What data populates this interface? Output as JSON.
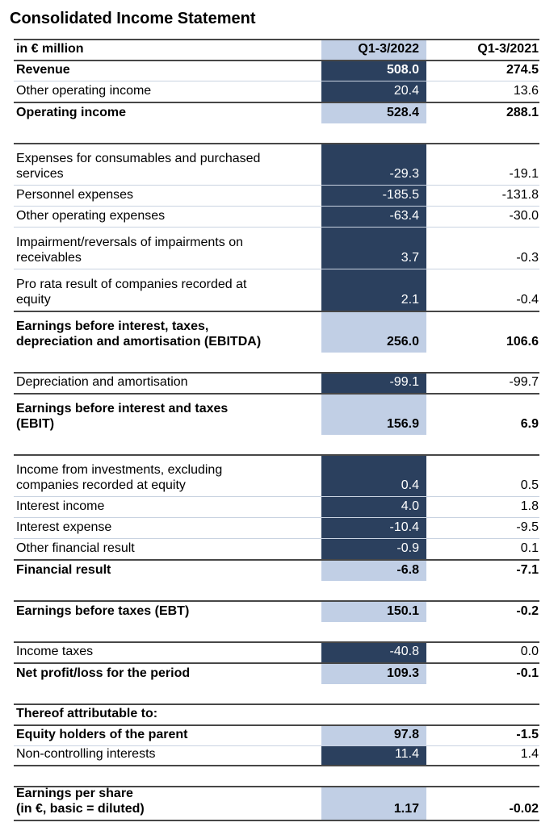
{
  "title": "Consolidated Income Statement",
  "colors": {
    "navy_cell": "#2B405E",
    "light_blue_cell": "#C1CFE5",
    "dark_rule": "#474747",
    "light_rule": "#C9D3E1"
  },
  "table": {
    "unit_label": "in € million",
    "columns": [
      "Q1-3/2022",
      "Q1-3/2021"
    ],
    "sections": [
      {
        "rows": [
          {
            "header": true,
            "label": "in € million",
            "v2022": "Q1-3/2022",
            "v2021": "Q1-3/2021",
            "bold": true,
            "bg": "blue",
            "top": "dark",
            "size": "s"
          },
          {
            "label": "Revenue",
            "v2022": "508.0",
            "v2021": "274.5",
            "bold": true,
            "bg": "navy",
            "top": "dark",
            "size": "s"
          },
          {
            "label": "Other operating income",
            "v2022": "20.4",
            "v2021": "13.6",
            "bold": false,
            "bg": "navy",
            "top": "light",
            "size": "s"
          },
          {
            "label": "Operating income",
            "v2022": "528.4",
            "v2021": "288.1",
            "bold": true,
            "bg": "blue",
            "top": "dark",
            "size": "m"
          }
        ]
      },
      {
        "rows": [
          {
            "label": [
              "Expenses for consumables and purchased",
              "services"
            ],
            "v2022": "-29.3",
            "v2021": "-19.1",
            "bold": false,
            "bg": "navy",
            "top": "dark",
            "size": "d"
          },
          {
            "label": "Personnel expenses",
            "v2022": "-185.5",
            "v2021": "-131.8",
            "bold": false,
            "bg": "navy",
            "top": "light",
            "size": "s"
          },
          {
            "label": "Other operating expenses",
            "v2022": "-63.4",
            "v2021": "-30.0",
            "bold": false,
            "bg": "navy",
            "top": "light",
            "size": "s"
          },
          {
            "label": [
              "Impairment/reversals of impairments on",
              "receivables"
            ],
            "v2022": "3.7",
            "v2021": "-0.3",
            "bold": false,
            "bg": "navy",
            "top": "light",
            "size": "d"
          },
          {
            "label": [
              "Pro rata result of companies recorded at",
              "equity"
            ],
            "v2022": "2.1",
            "v2021": "-0.4",
            "bold": false,
            "bg": "navy",
            "top": "light",
            "size": "d"
          },
          {
            "label": [
              "Earnings before interest, taxes,",
              "depreciation and amortisation (EBITDA)"
            ],
            "v2022": "256.0",
            "v2021": "106.6",
            "bold": true,
            "bg": "blue",
            "top": "dark",
            "size": "d"
          }
        ]
      },
      {
        "rows": [
          {
            "label": "Depreciation and amortisation",
            "v2022": "-99.1",
            "v2021": "-99.7",
            "bold": false,
            "bg": "navy",
            "top": "dark",
            "size": "s"
          },
          {
            "label": [
              "Earnings before interest and taxes",
              "(EBIT)"
            ],
            "v2022": "156.9",
            "v2021": "6.9",
            "bold": true,
            "bg": "blue",
            "top": "dark",
            "size": "d"
          }
        ]
      },
      {
        "rows": [
          {
            "label": [
              "Income from investments, excluding",
              "companies recorded at equity"
            ],
            "v2022": "0.4",
            "v2021": "0.5",
            "bold": false,
            "bg": "navy",
            "top": "dark",
            "size": "d"
          },
          {
            "label": "Interest income",
            "v2022": "4.0",
            "v2021": "1.8",
            "bold": false,
            "bg": "navy",
            "top": "light",
            "size": "s"
          },
          {
            "label": "Interest expense",
            "v2022": "-10.4",
            "v2021": "-9.5",
            "bold": false,
            "bg": "navy",
            "top": "light",
            "size": "s"
          },
          {
            "label": "Other financial result",
            "v2022": "-0.9",
            "v2021": "0.1",
            "bold": false,
            "bg": "navy",
            "top": "light",
            "size": "s"
          },
          {
            "label": "Financial result",
            "v2022": "-6.8",
            "v2021": "-7.1",
            "bold": true,
            "bg": "blue",
            "top": "dark",
            "size": "m"
          }
        ]
      },
      {
        "rows": [
          {
            "label": "Earnings before taxes (EBT)",
            "v2022": "150.1",
            "v2021": "-0.2",
            "bold": true,
            "bg": "blue",
            "top": "dark",
            "size": "m"
          }
        ]
      },
      {
        "rows": [
          {
            "label": "Income taxes",
            "v2022": "-40.8",
            "v2021": "0.0",
            "bold": false,
            "bg": "navy",
            "top": "dark",
            "size": "s"
          },
          {
            "label": "Net profit/loss for the period",
            "v2022": "109.3",
            "v2021": "-0.1",
            "bold": true,
            "bg": "blue",
            "top": "dark",
            "size": "m"
          }
        ]
      },
      {
        "rows": [
          {
            "label": "Thereof attributable to:",
            "v2022": "",
            "v2021": "",
            "bold": true,
            "bg": "none",
            "top": "dark",
            "size": "s"
          },
          {
            "label": "Equity holders of the parent",
            "v2022": "97.8",
            "v2021": "-1.5",
            "bold": true,
            "bg": "blue",
            "top": "dark",
            "size": "s"
          },
          {
            "label": "Non-controlling interests",
            "v2022": "11.4",
            "v2021": "1.4",
            "bold": false,
            "bg": "navy",
            "top": "light",
            "size": "s",
            "bottom": "dark"
          }
        ]
      },
      {
        "rows": [
          {
            "label": [
              "Earnings per share",
              "(in €, basic = diluted)"
            ],
            "v2022": "1.17",
            "v2021": "-0.02",
            "bold": true,
            "bg": "blue",
            "top": "dark",
            "size": "e",
            "bottom": "dark"
          }
        ]
      }
    ]
  }
}
